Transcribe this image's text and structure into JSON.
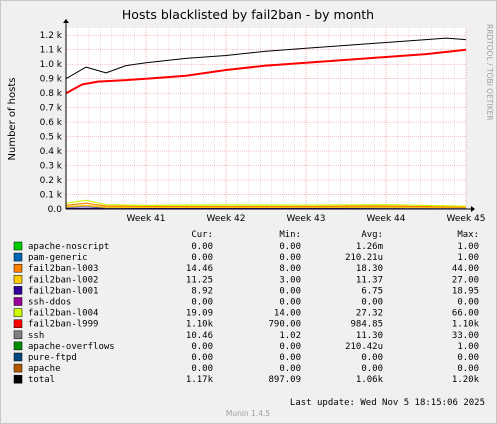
{
  "title": "Hosts blacklisted by fail2ban - by month",
  "side_label": "RRDTOOL / TOBI OETIKER",
  "ylabel": "Number of hosts",
  "header": {
    "cur": "Cur:",
    "min": "Min:",
    "avg": "Avg:",
    "max": "Max:"
  },
  "legend": [
    {
      "name": "apache-noscript",
      "color": "#00cc00",
      "cur": "0.00",
      "min": "0.00",
      "avg": "1.26m",
      "max": "1.00"
    },
    {
      "name": "pam-generic",
      "color": "#0066b3",
      "cur": "0.00",
      "min": "0.00",
      "avg": "210.21u",
      "max": "1.00"
    },
    {
      "name": "fail2ban-l003",
      "color": "#ff8000",
      "cur": "14.46",
      "min": "8.00",
      "avg": "18.30",
      "max": "44.00"
    },
    {
      "name": "fail2ban-l002",
      "color": "#ffcc00",
      "cur": "11.25",
      "min": "3.00",
      "avg": "11.37",
      "max": "27.00"
    },
    {
      "name": "fail2ban-l001",
      "color": "#330099",
      "cur": "8.92",
      "min": "0.00",
      "avg": "6.75",
      "max": "18.95"
    },
    {
      "name": "ssh-ddos",
      "color": "#990099",
      "cur": "0.00",
      "min": "0.00",
      "avg": "0.00",
      "max": "0.00"
    },
    {
      "name": "fail2ban-l004",
      "color": "#ccff00",
      "cur": "19.09",
      "min": "14.00",
      "avg": "27.32",
      "max": "66.00"
    },
    {
      "name": "fail2ban-l999",
      "color": "#ff0000",
      "cur": "1.10k",
      "min": "790.00",
      "avg": "984.85",
      "max": "1.10k"
    },
    {
      "name": "ssh",
      "color": "#808080",
      "cur": "10.46",
      "min": "1.02",
      "avg": "11.30",
      "max": "33.00"
    },
    {
      "name": "apache-overflows",
      "color": "#008f00",
      "cur": "0.00",
      "min": "0.00",
      "avg": "210.42u",
      "max": "1.00"
    },
    {
      "name": "pure-ftpd",
      "color": "#00487d",
      "cur": "0.00",
      "min": "0.00",
      "avg": "0.00",
      "max": "0.00"
    },
    {
      "name": "apache",
      "color": "#b35a00",
      "cur": "0.00",
      "min": "0.00",
      "avg": "0.00",
      "max": "0.00"
    },
    {
      "name": "total",
      "color": "#000000",
      "cur": "1.17k",
      "min": "897.09",
      "avg": "1.06k",
      "max": "1.20k"
    }
  ],
  "last_update": "Last update:  Wed Nov  5 18:15:06 2025",
  "footer": "Munin 1.4.5",
  "chart_data": {
    "type": "line",
    "title": "Hosts blacklisted by fail2ban - by month",
    "ylabel": "Number of hosts",
    "xlabel": "",
    "x_ticks": [
      "Week 41",
      "Week 42",
      "Week 43",
      "Week 44",
      "Week 45"
    ],
    "y_ticks": [
      "0.0",
      "0.1 k",
      "0.2 k",
      "0.3 k",
      "0.4 k",
      "0.5 k",
      "0.6 k",
      "0.7 k",
      "0.8 k",
      "0.9 k",
      "1.0 k",
      "1.1 k",
      "1.2 k"
    ],
    "ylim": [
      0,
      1250
    ],
    "grid": true,
    "x_range_weeks": [
      40.0,
      45.0
    ],
    "series": [
      {
        "name": "total",
        "color": "#000000",
        "x": [
          40.0,
          40.25,
          40.5,
          40.75,
          41.0,
          41.5,
          42.0,
          42.5,
          43.0,
          43.5,
          44.0,
          44.5,
          44.75,
          45.0
        ],
        "y": [
          900,
          980,
          940,
          990,
          1010,
          1040,
          1060,
          1090,
          1110,
          1130,
          1150,
          1170,
          1180,
          1170
        ]
      },
      {
        "name": "fail2ban-l999",
        "color": "#ff0000",
        "x": [
          40.0,
          40.2,
          40.4,
          40.75,
          41.0,
          41.5,
          42.0,
          42.5,
          43.0,
          43.5,
          44.0,
          44.5,
          45.0
        ],
        "y": [
          800,
          860,
          880,
          890,
          900,
          920,
          960,
          990,
          1010,
          1030,
          1050,
          1070,
          1100
        ]
      },
      {
        "name": "fail2ban-l004",
        "color": "#ccff00",
        "x": [
          40.0,
          40.25,
          40.5,
          41.0,
          42.0,
          43.0,
          44.0,
          45.0
        ],
        "y": [
          40,
          60,
          30,
          25,
          28,
          26,
          30,
          19
        ]
      },
      {
        "name": "fail2ban-l003",
        "color": "#ff8000",
        "x": [
          40.0,
          40.25,
          40.5,
          41.0,
          42.0,
          43.0,
          44.0,
          45.0
        ],
        "y": [
          25,
          40,
          20,
          18,
          17,
          18,
          20,
          14
        ]
      },
      {
        "name": "fail2ban-l002",
        "color": "#ffcc00",
        "x": [
          40.0,
          40.25,
          40.5,
          41.0,
          42.0,
          43.0,
          44.0,
          45.0
        ],
        "y": [
          15,
          25,
          12,
          11,
          11,
          12,
          12,
          11
        ]
      },
      {
        "name": "ssh",
        "color": "#808080",
        "x": [
          40.0,
          40.25,
          40.5,
          41.0,
          42.0,
          43.0,
          44.0,
          45.0
        ],
        "y": [
          12,
          20,
          10,
          11,
          11,
          12,
          11,
          10
        ]
      },
      {
        "name": "fail2ban-l001",
        "color": "#330099",
        "x": [
          40.0,
          40.5,
          41.0,
          42.0,
          43.0,
          44.0,
          45.0
        ],
        "y": [
          4,
          6,
          6,
          7,
          7,
          8,
          9
        ]
      }
    ]
  }
}
